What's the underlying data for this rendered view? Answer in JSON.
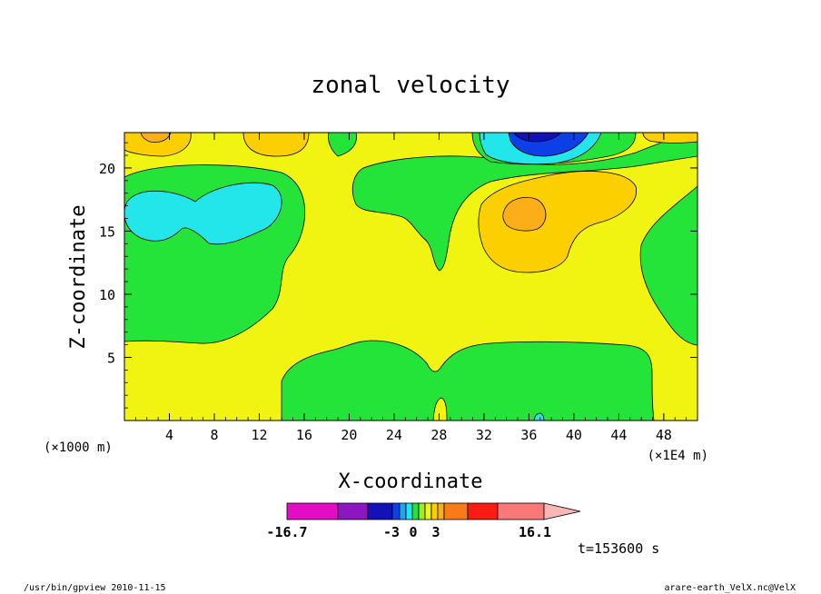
{
  "chart_data": {
    "type": "heatmap",
    "title": "zonal velocity",
    "xlabel": "X-coordinate",
    "ylabel": "Z-coordinate",
    "x_unit_left": "(×1000 m)",
    "x_unit_right": "(×1E4 m)",
    "xlim": [
      0,
      51
    ],
    "ylim": [
      0,
      22.8
    ],
    "x_ticks": [
      "4",
      "8",
      "12",
      "16",
      "20",
      "24",
      "28",
      "32",
      "36",
      "40",
      "44",
      "48"
    ],
    "y_ticks": [
      "5",
      "10",
      "15",
      "20"
    ],
    "colorbar": {
      "colors": [
        "#e40cc4",
        "#8c16c0",
        "#1212b8",
        "#0c40e6",
        "#1ea6f4",
        "#22e6ea",
        "#24e43a",
        "#a2e82a",
        "#f0f410",
        "#fcd000",
        "#fcae18",
        "#fa7a16",
        "#f81c14",
        "#fa7878",
        "#f8b6b4"
      ],
      "tick_labels": [
        "-16.7",
        "-3",
        "0",
        "3",
        "16.1"
      ]
    },
    "time_label": "t=153600 s"
  },
  "footer": {
    "left": "/usr/bin/gpview  2010-11-15",
    "right": "arare-earth_VelX.nc@VelX"
  }
}
